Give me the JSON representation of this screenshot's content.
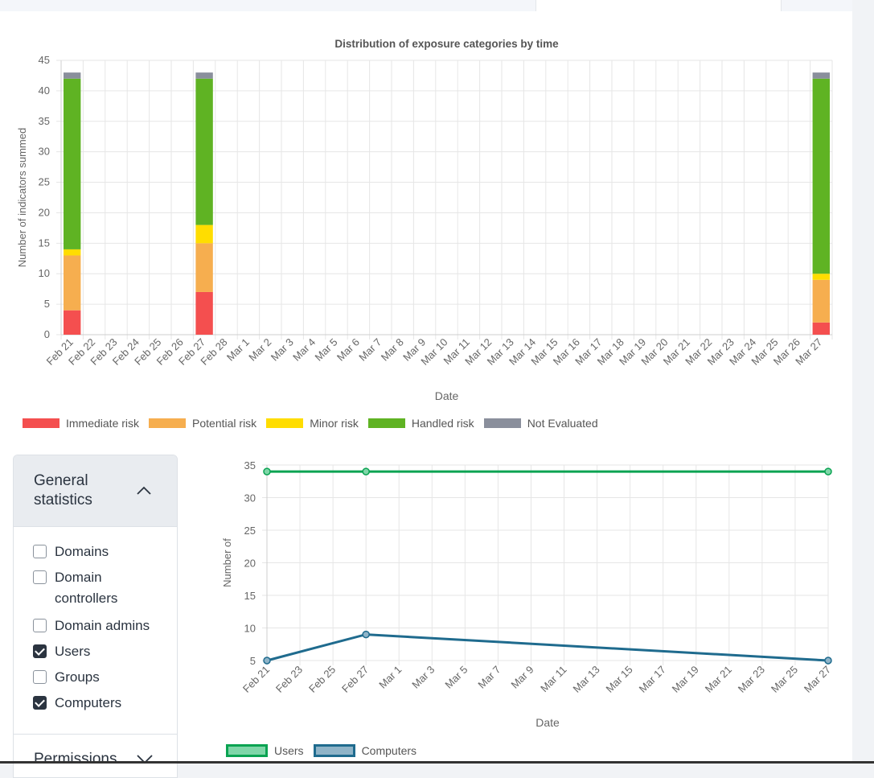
{
  "charts": {
    "chart1": {
      "title": "Distribution of exposure categories by time",
      "ylabel": "Number of indicators summed",
      "xlabel": "Date",
      "categories": [
        "Feb 21",
        "Feb 22",
        "Feb 23",
        "Feb 24",
        "Feb 25",
        "Feb 26",
        "Feb 27",
        "Feb 28",
        "Mar 1",
        "Mar 2",
        "Mar 3",
        "Mar 4",
        "Mar 5",
        "Mar 6",
        "Mar 7",
        "Mar 8",
        "Mar 9",
        "Mar 10",
        "Mar 11",
        "Mar 12",
        "Mar 13",
        "Mar 14",
        "Mar 15",
        "Mar 16",
        "Mar 17",
        "Mar 18",
        "Mar 19",
        "Mar 20",
        "Mar 21",
        "Mar 22",
        "Mar 23",
        "Mar 24",
        "Mar 25",
        "Mar 26",
        "Mar 27"
      ],
      "yticks": [
        0,
        5,
        10,
        15,
        20,
        25,
        30,
        35,
        40,
        45
      ],
      "ylim": [
        0,
        45
      ],
      "series": [
        {
          "name": "Immediate risk",
          "color": "#f44f4f",
          "data": {
            "Feb 21": 4,
            "Feb 27": 7,
            "Mar 27": 2
          }
        },
        {
          "name": "Potential risk",
          "color": "#f6ae4f",
          "data": {
            "Feb 21": 9,
            "Feb 27": 8,
            "Mar 27": 7
          }
        },
        {
          "name": "Minor risk",
          "color": "#ffdd00",
          "data": {
            "Feb 21": 1,
            "Feb 27": 3,
            "Mar 27": 1
          }
        },
        {
          "name": "Handled risk",
          "color": "#5fb323",
          "data": {
            "Feb 21": 28,
            "Feb 27": 24,
            "Mar 27": 32
          }
        },
        {
          "name": "Not Evaluated",
          "color": "#8a8f9c",
          "data": {
            "Feb 21": 1,
            "Feb 27": 1,
            "Mar 27": 1
          }
        }
      ]
    },
    "chart2": {
      "ylabel": "Number of",
      "xlabel": "Date",
      "categories": [
        "Feb 21",
        "Feb 23",
        "Feb 25",
        "Feb 27",
        "Mar 1",
        "Mar 3",
        "Mar 5",
        "Mar 7",
        "Mar 9",
        "Mar 11",
        "Mar 13",
        "Mar 15",
        "Mar 17",
        "Mar 19",
        "Mar 21",
        "Mar 23",
        "Mar 25",
        "Mar 27"
      ],
      "days_total": 34,
      "yticks": [
        5,
        10,
        15,
        20,
        25,
        30,
        35
      ],
      "ylim": [
        5,
        35
      ],
      "series": [
        {
          "name": "Users",
          "color": "#0aa352",
          "fill": "#7fd6a8",
          "points": [
            {
              "day": 0,
              "value": 34
            },
            {
              "day": 6,
              "value": 34
            },
            {
              "day": 34,
              "value": 34
            }
          ]
        },
        {
          "name": "Computers",
          "color": "#1f6b8e",
          "fill": "#8fb4c8",
          "points": [
            {
              "day": 0,
              "value": 5
            },
            {
              "day": 6,
              "value": 9
            },
            {
              "day": 34,
              "value": 5
            }
          ]
        }
      ]
    }
  },
  "chart_data": [
    {
      "type": "bar",
      "title": "Distribution of exposure categories by time",
      "xlabel": "Date",
      "ylabel": "Number of indicators summed",
      "ylim": [
        0,
        45
      ],
      "categories": [
        "Feb 21",
        "Feb 27",
        "Mar 27"
      ],
      "series": [
        {
          "name": "Immediate risk",
          "values": [
            4,
            7,
            2
          ]
        },
        {
          "name": "Potential risk",
          "values": [
            9,
            8,
            7
          ]
        },
        {
          "name": "Minor risk",
          "values": [
            1,
            3,
            1
          ]
        },
        {
          "name": "Handled risk",
          "values": [
            28,
            24,
            32
          ]
        },
        {
          "name": "Not Evaluated",
          "values": [
            1,
            1,
            1
          ]
        }
      ]
    },
    {
      "type": "line",
      "xlabel": "Date",
      "ylabel": "Number of",
      "ylim": [
        5,
        35
      ],
      "x": [
        "Feb 21",
        "Feb 27",
        "Mar 27"
      ],
      "series": [
        {
          "name": "Users",
          "values": [
            34,
            34,
            34
          ]
        },
        {
          "name": "Computers",
          "values": [
            5,
            9,
            5
          ]
        }
      ]
    }
  ],
  "sidebar": {
    "section1_title_line1": "General",
    "section1_title_line2": "statistics",
    "items": [
      {
        "label": "Domains",
        "checked": false
      },
      {
        "label": "Domain controllers",
        "checked": false
      },
      {
        "label": "Domain admins",
        "checked": false
      },
      {
        "label": "Users",
        "checked": true
      },
      {
        "label": "Groups",
        "checked": false
      },
      {
        "label": "Computers",
        "checked": true
      }
    ],
    "section2_title": "Permissions"
  }
}
